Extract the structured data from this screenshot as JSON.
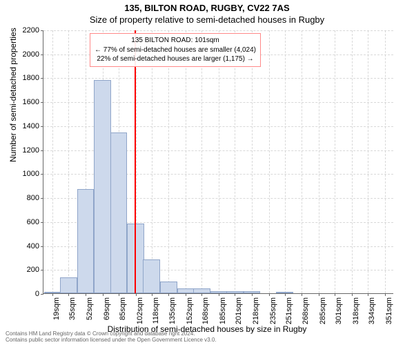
{
  "title_main": "135, BILTON ROAD, RUGBY, CV22 7AS",
  "title_sub": "Size of property relative to semi-detached houses in Rugby",
  "ylabel": "Number of semi-detached properties",
  "xlabel": "Distribution of semi-detached houses by size in Rugby",
  "chart": {
    "type": "histogram",
    "background_color": "#ffffff",
    "grid_color": "#d8d8d8",
    "bar_fill": "#cdd9ec",
    "bar_border": "#8fa5c9",
    "marker_color": "#ff0000",
    "axis_color": "#666666",
    "xlim": [
      10,
      360
    ],
    "ylim": [
      0,
      2200
    ],
    "ytick_step": 200,
    "xticks": [
      19,
      35,
      52,
      69,
      85,
      102,
      118,
      135,
      152,
      168,
      185,
      201,
      218,
      235,
      251,
      268,
      285,
      301,
      318,
      334,
      351
    ],
    "xtick_unit": "sqm",
    "bin_width": 17,
    "bars": [
      {
        "x": 19,
        "y": 10
      },
      {
        "x": 35,
        "y": 130
      },
      {
        "x": 52,
        "y": 870
      },
      {
        "x": 69,
        "y": 1780
      },
      {
        "x": 85,
        "y": 1340
      },
      {
        "x": 102,
        "y": 580
      },
      {
        "x": 118,
        "y": 280
      },
      {
        "x": 135,
        "y": 100
      },
      {
        "x": 152,
        "y": 40
      },
      {
        "x": 168,
        "y": 40
      },
      {
        "x": 185,
        "y": 15
      },
      {
        "x": 201,
        "y": 20
      },
      {
        "x": 218,
        "y": 15
      },
      {
        "x": 235,
        "y": 0
      },
      {
        "x": 251,
        "y": 5
      }
    ],
    "marker_x": 101,
    "label_fontsize": 12,
    "tick_fontsize": 11
  },
  "annotation": {
    "border_color": "#ff8888",
    "line1": "135 BILTON ROAD: 101sqm",
    "line2": "← 77% of semi-detached houses are smaller (4,024)",
    "line3": "22% of semi-detached houses are larger (1,175) →"
  },
  "license": {
    "line1": "Contains HM Land Registry data © Crown copyright and database right 2024.",
    "line2": "Contains public sector information licensed under the Open Government Licence v3.0."
  }
}
